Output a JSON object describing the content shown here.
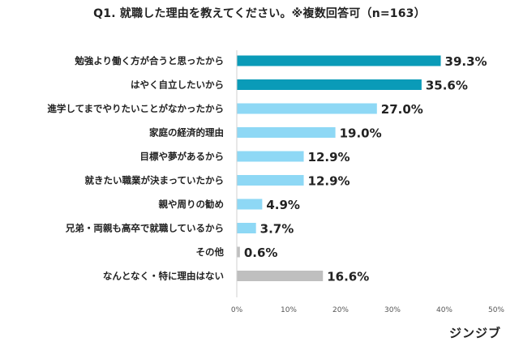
{
  "chart_data": {
    "type": "bar",
    "orientation": "horizontal",
    "title": "Q1.  就職した理由を教えてください。※複数回答可（n=163）",
    "categories": [
      "勉強より働く方が合うと思ったから",
      "はやく自立したいから",
      "進学してまでやりたいことがなかったから",
      "家庭の経済的理由",
      "目標や夢があるから",
      "就きたい職業が決まっていたから",
      "親や周りの勧め",
      "兄弟・両親も高卒で就職しているから",
      "その他",
      "なんとなく・特に理由はない"
    ],
    "values": [
      39.3,
      35.6,
      27.0,
      19.0,
      12.9,
      12.9,
      4.9,
      3.7,
      0.6,
      16.6
    ],
    "value_labels": [
      "39.3%",
      "35.6%",
      "27.0%",
      "19.0%",
      "12.9%",
      "12.9%",
      "4.9%",
      "3.7%",
      "0.6%",
      "16.6%"
    ],
    "bar_colors": [
      "#0A9BB8",
      "#0A9BB8",
      "#8ED8F5",
      "#8ED8F5",
      "#8ED8F5",
      "#8ED8F5",
      "#8ED8F5",
      "#8ED8F5",
      "#BFBFBF",
      "#BFBFBF"
    ],
    "xlim": [
      0,
      50
    ],
    "xticks": [
      0,
      10,
      20,
      30,
      40,
      50
    ],
    "xtick_labels": [
      "0%",
      "10%",
      "20%",
      "30%",
      "40%",
      "50%"
    ],
    "grid": false,
    "xlabel": "",
    "ylabel": ""
  },
  "brand": "ジンジブ"
}
